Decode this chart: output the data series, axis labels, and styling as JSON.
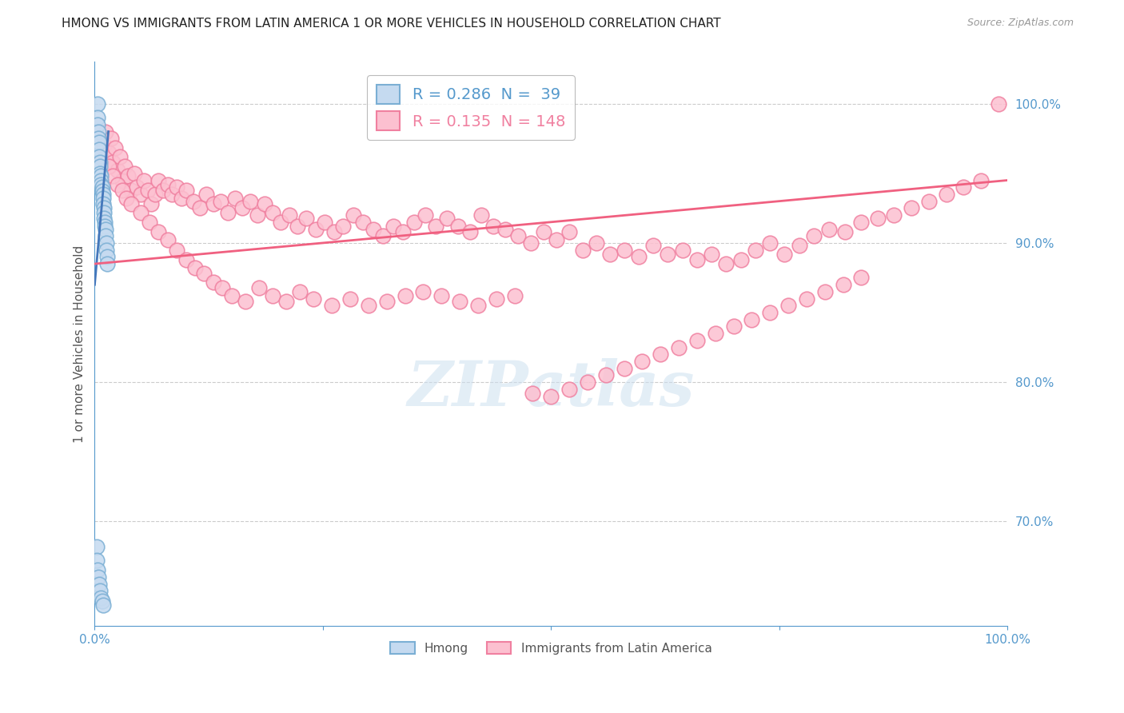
{
  "title": "HMONG VS IMMIGRANTS FROM LATIN AMERICA 1 OR MORE VEHICLES IN HOUSEHOLD CORRELATION CHART",
  "source": "Source: ZipAtlas.com",
  "ylabel": "1 or more Vehicles in Household",
  "xlim": [
    0.0,
    1.0
  ],
  "ylim": [
    0.625,
    1.03
  ],
  "yticks": [
    0.7,
    0.8,
    0.9,
    1.0
  ],
  "ytick_labels": [
    "70.0%",
    "80.0%",
    "90.0%",
    "100.0%"
  ],
  "legend_label_blue": "R = 0.286  N =  39",
  "legend_label_pink": "R = 0.135  N = 148",
  "blue_color": "#7bafd4",
  "blue_face_color": "#c5daf0",
  "pink_color": "#f080a0",
  "pink_face_color": "#fcc0d0",
  "trend_blue_color": "#4477bb",
  "trend_pink_color": "#f06080",
  "grid_color": "#cccccc",
  "axis_color": "#5599cc",
  "watermark": "ZIPatlas",
  "title_color": "#222222",
  "title_fontsize": 11,
  "source_color": "#999999",
  "source_fontsize": 9,
  "blue_x": [
    0.003,
    0.003,
    0.003,
    0.004,
    0.004,
    0.005,
    0.005,
    0.005,
    0.006,
    0.006,
    0.006,
    0.007,
    0.007,
    0.007,
    0.008,
    0.008,
    0.009,
    0.009,
    0.009,
    0.01,
    0.01,
    0.01,
    0.011,
    0.011,
    0.012,
    0.012,
    0.013,
    0.013,
    0.014,
    0.014,
    0.002,
    0.002,
    0.003,
    0.004,
    0.005,
    0.006,
    0.007,
    0.008,
    0.009
  ],
  "blue_y": [
    1.0,
    0.99,
    0.985,
    0.98,
    0.975,
    0.972,
    0.967,
    0.962,
    0.958,
    0.955,
    0.95,
    0.948,
    0.945,
    0.942,
    0.94,
    0.937,
    0.935,
    0.932,
    0.928,
    0.925,
    0.922,
    0.918,
    0.915,
    0.912,
    0.91,
    0.905,
    0.9,
    0.895,
    0.89,
    0.885,
    0.682,
    0.672,
    0.665,
    0.66,
    0.655,
    0.65,
    0.645,
    0.643,
    0.64
  ],
  "pink_x": [
    0.008,
    0.01,
    0.012,
    0.015,
    0.018,
    0.02,
    0.022,
    0.025,
    0.028,
    0.03,
    0.033,
    0.036,
    0.04,
    0.043,
    0.046,
    0.05,
    0.054,
    0.058,
    0.062,
    0.066,
    0.07,
    0.075,
    0.08,
    0.085,
    0.09,
    0.095,
    0.1,
    0.108,
    0.115,
    0.122,
    0.13,
    0.138,
    0.146,
    0.154,
    0.162,
    0.17,
    0.178,
    0.186,
    0.195,
    0.204,
    0.213,
    0.222,
    0.232,
    0.242,
    0.252,
    0.262,
    0.272,
    0.283,
    0.294,
    0.305,
    0.316,
    0.327,
    0.338,
    0.35,
    0.362,
    0.374,
    0.386,
    0.398,
    0.411,
    0.424,
    0.437,
    0.45,
    0.464,
    0.478,
    0.492,
    0.506,
    0.52,
    0.535,
    0.55,
    0.565,
    0.58,
    0.596,
    0.612,
    0.628,
    0.644,
    0.66,
    0.676,
    0.692,
    0.708,
    0.724,
    0.74,
    0.756,
    0.772,
    0.788,
    0.805,
    0.822,
    0.84,
    0.858,
    0.876,
    0.895,
    0.914,
    0.933,
    0.952,
    0.971,
    0.99,
    0.015,
    0.02,
    0.025,
    0.03,
    0.035,
    0.04,
    0.05,
    0.06,
    0.07,
    0.08,
    0.09,
    0.1,
    0.11,
    0.12,
    0.13,
    0.14,
    0.15,
    0.165,
    0.18,
    0.195,
    0.21,
    0.225,
    0.24,
    0.26,
    0.28,
    0.3,
    0.32,
    0.34,
    0.36,
    0.38,
    0.4,
    0.42,
    0.44,
    0.46,
    0.48,
    0.5,
    0.52,
    0.54,
    0.56,
    0.58,
    0.6,
    0.62,
    0.64,
    0.66,
    0.68,
    0.7,
    0.72,
    0.74,
    0.76,
    0.78,
    0.8,
    0.82,
    0.84
  ],
  "pink_y": [
    0.96,
    0.97,
    0.98,
    0.965,
    0.975,
    0.958,
    0.968,
    0.952,
    0.962,
    0.945,
    0.955,
    0.948,
    0.938,
    0.95,
    0.94,
    0.935,
    0.945,
    0.938,
    0.928,
    0.935,
    0.945,
    0.938,
    0.942,
    0.935,
    0.94,
    0.932,
    0.938,
    0.93,
    0.925,
    0.935,
    0.928,
    0.93,
    0.922,
    0.932,
    0.925,
    0.93,
    0.92,
    0.928,
    0.922,
    0.915,
    0.92,
    0.912,
    0.918,
    0.91,
    0.915,
    0.908,
    0.912,
    0.92,
    0.915,
    0.91,
    0.905,
    0.912,
    0.908,
    0.915,
    0.92,
    0.912,
    0.918,
    0.912,
    0.908,
    0.92,
    0.912,
    0.91,
    0.905,
    0.9,
    0.908,
    0.902,
    0.908,
    0.895,
    0.9,
    0.892,
    0.895,
    0.89,
    0.898,
    0.892,
    0.895,
    0.888,
    0.892,
    0.885,
    0.888,
    0.895,
    0.9,
    0.892,
    0.898,
    0.905,
    0.91,
    0.908,
    0.915,
    0.918,
    0.92,
    0.925,
    0.93,
    0.935,
    0.94,
    0.945,
    1.0,
    0.955,
    0.948,
    0.942,
    0.938,
    0.932,
    0.928,
    0.922,
    0.915,
    0.908,
    0.902,
    0.895,
    0.888,
    0.882,
    0.878,
    0.872,
    0.868,
    0.862,
    0.858,
    0.868,
    0.862,
    0.858,
    0.865,
    0.86,
    0.855,
    0.86,
    0.855,
    0.858,
    0.862,
    0.865,
    0.862,
    0.858,
    0.855,
    0.86,
    0.862,
    0.792,
    0.79,
    0.795,
    0.8,
    0.805,
    0.81,
    0.815,
    0.82,
    0.825,
    0.83,
    0.835,
    0.84,
    0.845,
    0.85,
    0.855,
    0.86,
    0.865,
    0.87,
    0.875
  ]
}
